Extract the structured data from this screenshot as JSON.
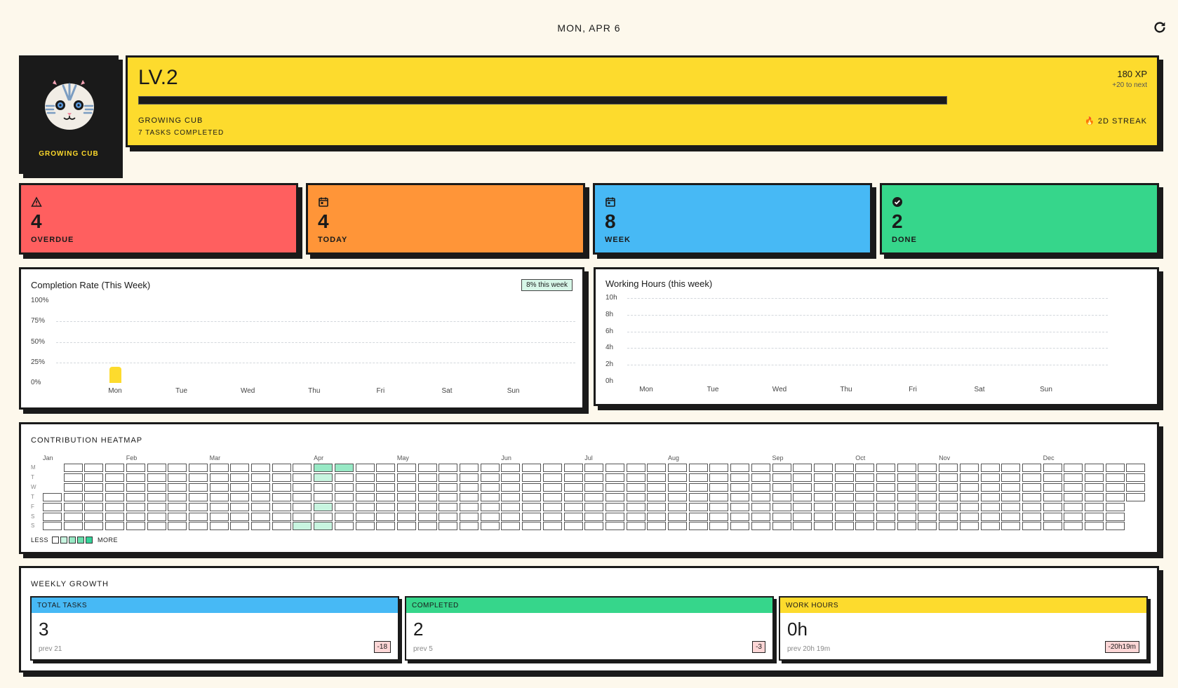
{
  "header": {
    "date": "MON, APR 6",
    "refresh_icon": "refresh-icon"
  },
  "avatar": {
    "title": "GROWING CUB"
  },
  "level": {
    "label": "LV.2",
    "rank": "GROWING CUB",
    "tasks_completed": "7 TASKS COMPLETED",
    "xp": "180 XP",
    "to_next": "+20 to next",
    "streak": "2D STREAK",
    "streak_icon": "🔥"
  },
  "stats": [
    {
      "value": "4",
      "label": "OVERDUE",
      "icon": "warning-icon",
      "color": "#ff5f5f"
    },
    {
      "value": "4",
      "label": "TODAY",
      "icon": "calendar-icon",
      "color": "#ff9538"
    },
    {
      "value": "8",
      "label": "WEEK",
      "icon": "calendar-icon",
      "color": "#47b9f5"
    },
    {
      "value": "2",
      "label": "DONE",
      "icon": "check-circle-icon",
      "color": "#36d68b"
    }
  ],
  "chart_data": [
    {
      "type": "bar",
      "title": "Completion Rate (This Week)",
      "badge": "8% this week",
      "categories": [
        "Mon",
        "Tue",
        "Wed",
        "Thu",
        "Fri",
        "Sat",
        "Sun"
      ],
      "values": [
        20,
        0,
        0,
        0,
        0,
        0,
        0
      ],
      "yticks": [
        "0%",
        "25%",
        "50%",
        "75%",
        "100%"
      ],
      "ylim": [
        0,
        100
      ],
      "grid": true
    },
    {
      "type": "bar",
      "title": "Working Hours (this week)",
      "categories": [
        "Mon",
        "Tue",
        "Wed",
        "Thu",
        "Fri",
        "Sat",
        "Sun"
      ],
      "values": [
        0,
        0,
        0,
        0,
        0,
        0,
        0
      ],
      "yticks": [
        "0h",
        "2h",
        "4h",
        "6h",
        "8h",
        "10h"
      ],
      "ylim": [
        0,
        10
      ],
      "grid": true
    }
  ],
  "heatmap": {
    "title": "CONTRIBUTION HEATMAP",
    "days": [
      "M",
      "T",
      "W",
      "T",
      "F",
      "S",
      "S"
    ],
    "months": [
      {
        "label": "Jan",
        "week": 0
      },
      {
        "label": "Feb",
        "week": 4
      },
      {
        "label": "Mar",
        "week": 8
      },
      {
        "label": "Apr",
        "week": 13
      },
      {
        "label": "May",
        "week": 17
      },
      {
        "label": "Jun",
        "week": 22
      },
      {
        "label": "Jul",
        "week": 26
      },
      {
        "label": "Aug",
        "week": 30
      },
      {
        "label": "Sep",
        "week": 35
      },
      {
        "label": "Oct",
        "week": 39
      },
      {
        "label": "Nov",
        "week": 43
      },
      {
        "label": "Dec",
        "week": 48
      }
    ],
    "weeks": 53,
    "first_week_start_day": 3,
    "last_week_end_day": 3,
    "active": [
      {
        "week": 12,
        "day": 6,
        "level": 1
      },
      {
        "week": 13,
        "day": 0,
        "level": 2
      },
      {
        "week": 13,
        "day": 1,
        "level": 1
      },
      {
        "week": 13,
        "day": 4,
        "level": 1
      },
      {
        "week": 13,
        "day": 6,
        "level": 1
      },
      {
        "week": 14,
        "day": 0,
        "level": 2
      }
    ],
    "level_colors": [
      "#ffffff",
      "#c8f5e0",
      "#98e9c5",
      "#6adfac",
      "#34d399"
    ],
    "legend_less": "LESS",
    "legend_more": "MORE"
  },
  "growth": {
    "title": "WEEKLY GROWTH",
    "cards": [
      {
        "label": "TOTAL TASKS",
        "value": "3",
        "prev": "prev 21",
        "delta": "-18",
        "color": "#47b9f5"
      },
      {
        "label": "COMPLETED",
        "value": "2",
        "prev": "prev 5",
        "delta": "-3",
        "color": "#36d68b"
      },
      {
        "label": "WORK HOURS",
        "value": "0h",
        "prev": "prev 20h 19m",
        "delta": "-20h19m",
        "color": "#fddb2d"
      }
    ]
  }
}
